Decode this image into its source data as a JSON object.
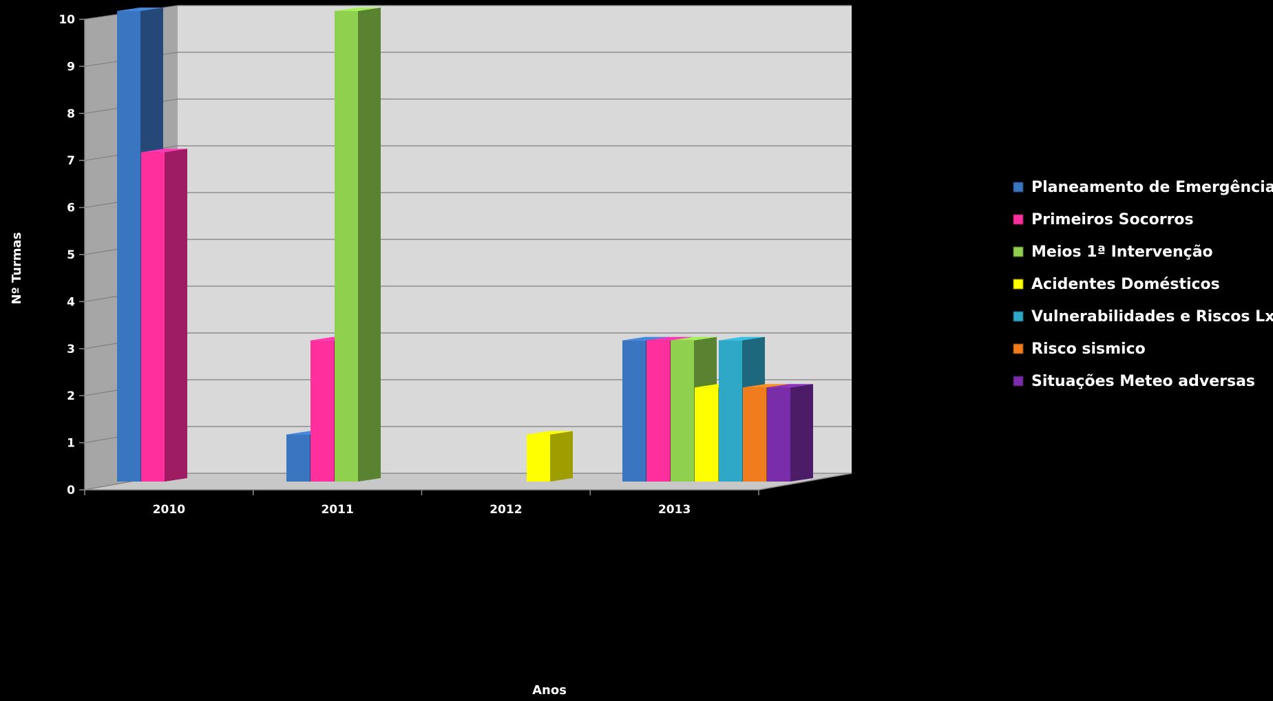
{
  "chart_data": {
    "type": "bar",
    "style": "3d-clustered",
    "categories": [
      "2010",
      "2011",
      "2012",
      "2013"
    ],
    "series": [
      {
        "name": "Planeamento de Emergência",
        "values": [
          10,
          1,
          0,
          3
        ],
        "color": "#3A75C2"
      },
      {
        "name": "Primeiros Socorros",
        "values": [
          7,
          3,
          0,
          3
        ],
        "color": "#FF2F9E"
      },
      {
        "name": "Meios 1ª Intervenção",
        "values": [
          0,
          10,
          0,
          3
        ],
        "color": "#8FD14F"
      },
      {
        "name": "Acidentes Domésticos",
        "values": [
          0,
          0,
          1,
          2
        ],
        "color": "#FFFF00"
      },
      {
        "name": "Vulnerabilidades e Riscos Lx",
        "values": [
          0,
          0,
          0,
          3
        ],
        "color": "#2FA8C8"
      },
      {
        "name": "Risco sismico",
        "values": [
          0,
          0,
          0,
          2
        ],
        "color": "#F07C1E"
      },
      {
        "name": "Situações Meteo adversas",
        "values": [
          0,
          0,
          0,
          2
        ],
        "color": "#7A2DA8"
      }
    ],
    "xlabel": "Anos",
    "ylabel": "Nº Turmas",
    "ylim": [
      0,
      10
    ],
    "yticks": [
      "0",
      "1",
      "2",
      "3",
      "4",
      "5",
      "6",
      "7",
      "8",
      "9",
      "10"
    ],
    "grid": true,
    "legend": "right",
    "background": "#000000",
    "wall_color": "#D9D9D9",
    "side_wall_color": "#A6A6A6"
  }
}
